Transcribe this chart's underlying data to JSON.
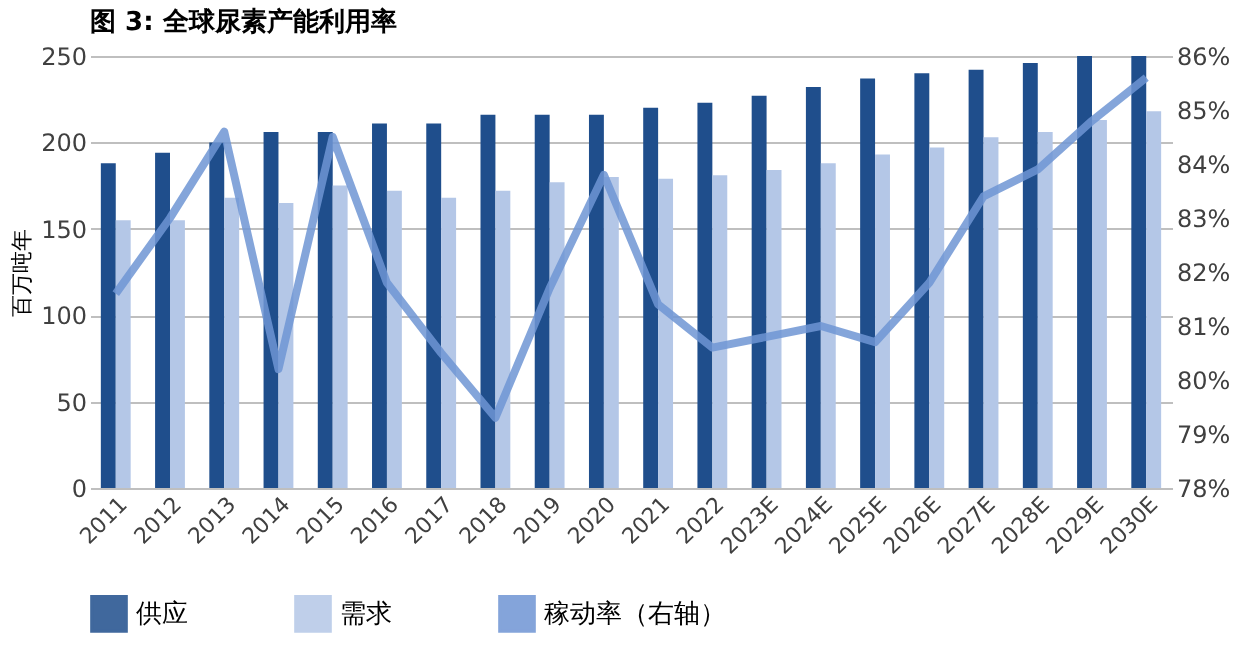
{
  "chart_data": {
    "type": "bar",
    "title": "图 3:  全球尿素产能利用率",
    "ylabel": "百万吨年",
    "categories": [
      "2011",
      "2012",
      "2013",
      "2014",
      "2015",
      "2016",
      "2017",
      "2018",
      "2019",
      "2020",
      "2021",
      "2022",
      "2023E",
      "2024E",
      "2025E",
      "2026E",
      "2027E",
      "2028E",
      "2029E",
      "2030E"
    ],
    "series": [
      {
        "name": "供应",
        "color": "#1f4e8c",
        "values": [
          188,
          194,
          200,
          206,
          206,
          211,
          211,
          216,
          216,
          216,
          220,
          223,
          227,
          232,
          237,
          240,
          242,
          246,
          250,
          250
        ]
      },
      {
        "name": "需求",
        "color": "#b4c7e7",
        "values": [
          155,
          155,
          168,
          165,
          175,
          172,
          168,
          172,
          177,
          180,
          179,
          181,
          184,
          188,
          193,
          197,
          203,
          206,
          213,
          218
        ]
      },
      {
        "name": "稼动率（右轴）",
        "color": "#6f95d4",
        "type": "line",
        "axis": "y2",
        "values": [
          81.6,
          83.0,
          84.6,
          80.2,
          84.5,
          81.8,
          80.5,
          79.3,
          81.7,
          83.8,
          81.4,
          80.6,
          80.8,
          81.0,
          80.7,
          81.8,
          83.4,
          83.9,
          84.8,
          85.6
        ]
      }
    ],
    "ylim": [
      0,
      250
    ],
    "yticks": [
      0,
      50,
      100,
      150,
      200,
      250
    ],
    "y2lim": [
      78,
      86
    ],
    "y2ticks": [
      {
        "value": 78,
        "label": "78%"
      },
      {
        "value": 79,
        "label": "79%"
      },
      {
        "value": 80,
        "label": "80%"
      },
      {
        "value": 81,
        "label": "81%"
      },
      {
        "value": 82,
        "label": "82%"
      },
      {
        "value": 83,
        "label": "83%"
      },
      {
        "value": 84,
        "label": "84%"
      },
      {
        "value": 85,
        "label": "85%"
      },
      {
        "value": 86,
        "label": "86%"
      }
    ],
    "grid": "y",
    "legend": "bottom"
  }
}
